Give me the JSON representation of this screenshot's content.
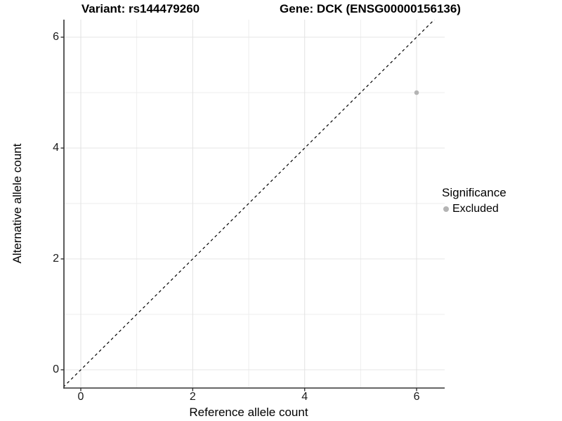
{
  "titles": {
    "left": "Variant: rs144479260",
    "right": "Gene: DCK (ENSG00000156136)"
  },
  "chart_data": {
    "type": "scatter",
    "title_left": "Variant: rs144479260",
    "title_right": "Gene: DCK (ENSG00000156136)",
    "xlabel": "Reference allele count",
    "ylabel": "Alternative allele count",
    "xlim": [
      -0.3,
      6.5
    ],
    "ylim": [
      -0.33,
      6.33
    ],
    "x_ticks": [
      0,
      2,
      4,
      6
    ],
    "y_ticks": [
      0,
      2,
      4,
      6
    ],
    "x_minor_gridlines": [
      1,
      3,
      5
    ],
    "y_minor_gridlines": [
      1,
      3,
      5
    ],
    "grid": true,
    "series": [
      {
        "name": "Excluded",
        "color": "#b4b4b4",
        "points": [
          {
            "x": 6,
            "y": 5
          }
        ]
      }
    ],
    "reference_line": {
      "type": "identity",
      "style": "dashed",
      "color": "#000000"
    },
    "legend": {
      "title": "Significance",
      "position": "right",
      "items": [
        {
          "label": "Excluded",
          "color": "#b4b4b4"
        }
      ]
    },
    "colors": {
      "grid_major": "#e4e4e4",
      "grid_minor": "#ededed",
      "axis_line": "#333333",
      "point": "#b4b4b4",
      "background": "#ffffff"
    }
  }
}
